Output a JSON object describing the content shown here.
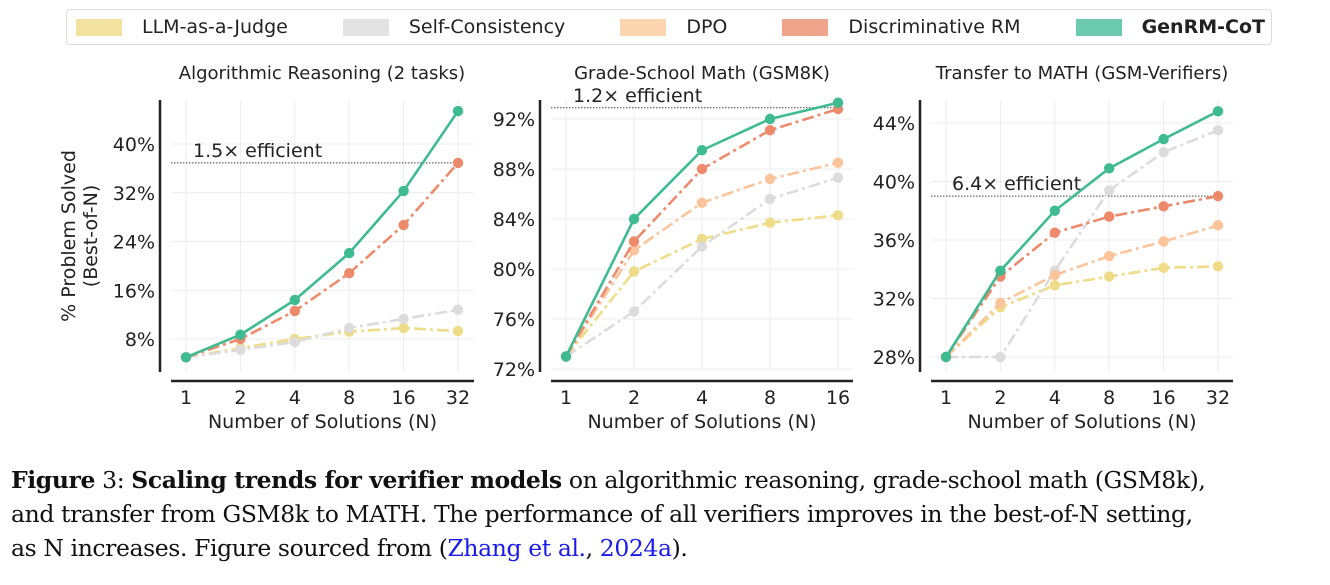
{
  "legend": {
    "items": [
      {
        "label": "LLM-as-a-Judge",
        "color": "#f2e2a0",
        "bold": false
      },
      {
        "label": "Self-Consistency",
        "color": "#e3e3e3",
        "bold": false
      },
      {
        "label": "DPO",
        "color": "#fbd4b0",
        "bold": false
      },
      {
        "label": "Discriminative RM",
        "color": "#f0a48b",
        "bold": false
      },
      {
        "label": "GenRM-CoT",
        "color": "#6ccbae",
        "bold": true
      }
    ]
  },
  "series_style": {
    "LLM-as-a-Judge": {
      "color": "#eedc88",
      "dash": "dashdot"
    },
    "Self-Consistency": {
      "color": "#dcdcdc",
      "dash": "dashdot"
    },
    "DPO": {
      "color": "#fbc49a",
      "dash": "dashdot"
    },
    "Discriminative RM": {
      "color": "#ee8a6c",
      "dash": "dashdot"
    },
    "GenRM-CoT": {
      "color": "#3fbb91",
      "dash": "solid"
    }
  },
  "chart_data": [
    {
      "type": "line",
      "title": "Algorithmic Reasoning (2 tasks)",
      "xlabel": "Number of Solutions (N)",
      "ylabel": "% Problem Solved\n(Best-of-N)",
      "x": [
        "1",
        "2",
        "4",
        "8",
        "16",
        "32"
      ],
      "yticks": [
        "8%",
        "16%",
        "24%",
        "32%",
        "40%"
      ],
      "ytick_values": [
        8,
        16,
        24,
        32,
        40
      ],
      "ylim": [
        3,
        47
      ],
      "grid": true,
      "annotation": {
        "text": "1.5× efficient",
        "y": 36.9
      },
      "series": [
        {
          "name": "LLM-as-a-Judge",
          "values": [
            5.0,
            6.5,
            8.0,
            9.2,
            9.8,
            9.3
          ]
        },
        {
          "name": "Self-Consistency",
          "values": [
            5.0,
            6.2,
            7.5,
            9.8,
            11.3,
            12.8
          ]
        },
        {
          "name": "Discriminative RM",
          "values": [
            5.0,
            8.0,
            12.6,
            18.8,
            26.7,
            36.9
          ]
        },
        {
          "name": "GenRM-CoT",
          "values": [
            5.0,
            8.7,
            14.4,
            22.1,
            32.3,
            45.4
          ]
        }
      ]
    },
    {
      "type": "line",
      "title": "Grade-School Math (GSM8K)",
      "xlabel": "Number of Solutions (N)",
      "ylabel": "",
      "x": [
        "1",
        "2",
        "4",
        "8",
        "16"
      ],
      "yticks": [
        "72%",
        "76%",
        "80%",
        "84%",
        "88%",
        "92%"
      ],
      "ytick_values": [
        72,
        76,
        80,
        84,
        88,
        92
      ],
      "ylim": [
        72,
        94.2
      ],
      "grid": true,
      "annotation": {
        "text": "1.2× efficient",
        "y": 92.9
      },
      "series": [
        {
          "name": "LLM-as-a-Judge",
          "values": [
            73.0,
            79.8,
            82.4,
            83.7,
            84.3
          ]
        },
        {
          "name": "Self-Consistency",
          "values": [
            73.0,
            76.6,
            81.8,
            85.6,
            87.3
          ]
        },
        {
          "name": "DPO",
          "values": [
            73.0,
            81.5,
            85.3,
            87.2,
            88.5
          ]
        },
        {
          "name": "Discriminative RM",
          "values": [
            73.0,
            82.2,
            88.0,
            91.1,
            92.8
          ]
        },
        {
          "name": "GenRM-CoT",
          "values": [
            73.0,
            84.0,
            89.5,
            92.0,
            93.3
          ]
        }
      ]
    },
    {
      "type": "line",
      "title": "Transfer to MATH (GSM-Verifiers)",
      "xlabel": "Number of Solutions (N)",
      "ylabel": "",
      "x": [
        "1",
        "2",
        "4",
        "8",
        "16",
        "32"
      ],
      "yticks": [
        "28%",
        "32%",
        "36%",
        "40%",
        "44%"
      ],
      "ytick_values": [
        28,
        32,
        36,
        40,
        44
      ],
      "ylim": [
        27.0,
        45.8
      ],
      "grid": true,
      "annotation": {
        "text": "6.4× efficient",
        "y": 39.0
      },
      "series": [
        {
          "name": "LLM-as-a-Judge",
          "values": [
            28.0,
            31.4,
            32.9,
            33.5,
            34.1,
            34.2
          ]
        },
        {
          "name": "Self-Consistency",
          "values": [
            28.0,
            28.0,
            33.9,
            39.4,
            42.0,
            43.5
          ]
        },
        {
          "name": "DPO",
          "values": [
            28.0,
            31.7,
            33.6,
            34.9,
            35.9,
            37.0
          ]
        },
        {
          "name": "Discriminative RM",
          "values": [
            28.0,
            33.5,
            36.5,
            37.6,
            38.3,
            39.0
          ]
        },
        {
          "name": "GenRM-CoT",
          "values": [
            28.0,
            33.9,
            38.0,
            40.9,
            42.9,
            44.8
          ]
        }
      ]
    }
  ],
  "caption": {
    "figure_label": "Figure",
    "figure_number": "3:",
    "bold_title": "Scaling trends for verifier models",
    "line1_rest": "on algorithmic reasoning, grade-school math (GSM8k),",
    "line2": "and transfer from GSM8k to MATH. The performance of all verifiers improves in the best-of-N setting,",
    "line3_pre": "as N increases. Figure sourced from (",
    "cite_author": "Zhang et al.",
    "cite_sep": ", ",
    "cite_year": "2024a",
    "line3_post": ")."
  }
}
